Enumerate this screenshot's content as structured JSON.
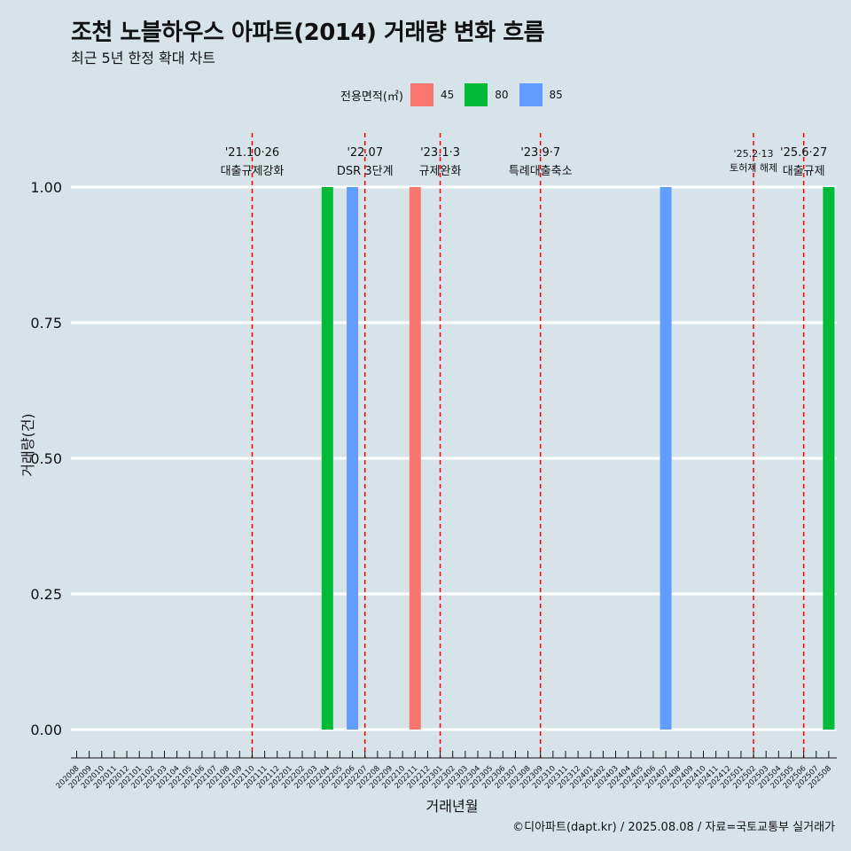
{
  "title": "조천 노블하우스 아파트(2014) 거래량 변화 흐름",
  "subtitle": "최근 5년 한정 확대 차트",
  "caption": "©디아파트(dapt.kr) / 2025.08.08 / 자료=국토교통부 실거래가",
  "legend": {
    "title": "전용면적(㎡)",
    "items": [
      {
        "label": "45",
        "color": "#f8766d"
      },
      {
        "label": "80",
        "color": "#00ba38"
      },
      {
        "label": "85",
        "color": "#619cff"
      }
    ]
  },
  "chart_data": {
    "type": "bar",
    "title": "조천 노블하우스 아파트(2014) 거래량 변화 흐름",
    "xlabel": "거래년월",
    "ylabel": "거래량(건)",
    "ylim": [
      0,
      1
    ],
    "yticks": [
      "0.00",
      "0.25",
      "0.50",
      "0.75",
      "1.00"
    ],
    "categories": [
      "202008",
      "202009",
      "202010",
      "202011",
      "202012",
      "202101",
      "202102",
      "202103",
      "202104",
      "202105",
      "202106",
      "202107",
      "202108",
      "202109",
      "202110",
      "202111",
      "202112",
      "202201",
      "202202",
      "202203",
      "202204",
      "202205",
      "202206",
      "202207",
      "202208",
      "202209",
      "202210",
      "202211",
      "202212",
      "202301",
      "202302",
      "202303",
      "202304",
      "202305",
      "202306",
      "202307",
      "202308",
      "202309",
      "202310",
      "202311",
      "202312",
      "202401",
      "202402",
      "202403",
      "202404",
      "202405",
      "202406",
      "202407",
      "202408",
      "202409",
      "202410",
      "202411",
      "202412",
      "202501",
      "202502",
      "202503",
      "202504",
      "202505",
      "202506",
      "202507",
      "202508"
    ],
    "bars": [
      {
        "month": "202204",
        "area": "80",
        "value": 1
      },
      {
        "month": "202206",
        "area": "85",
        "value": 1
      },
      {
        "month": "202211",
        "area": "45",
        "value": 1
      },
      {
        "month": "202407",
        "area": "85",
        "value": 1
      },
      {
        "month": "202508",
        "area": "80",
        "value": 1
      }
    ],
    "events": [
      {
        "month": "202110",
        "date": "'21.10·26",
        "label": "대출규제강화"
      },
      {
        "month": "202207",
        "date": "'22.07",
        "label": "DSR 3단계"
      },
      {
        "month": "202301",
        "date": "'23.1·3",
        "label": "규제완화"
      },
      {
        "month": "202309",
        "date": "'23.9·7",
        "label": "특례대출축소"
      },
      {
        "month": "202502",
        "date": "'25.2·13",
        "label": "토허제 해제"
      },
      {
        "month": "202506",
        "date": "'25.6·27",
        "label": "대출규제"
      }
    ]
  }
}
